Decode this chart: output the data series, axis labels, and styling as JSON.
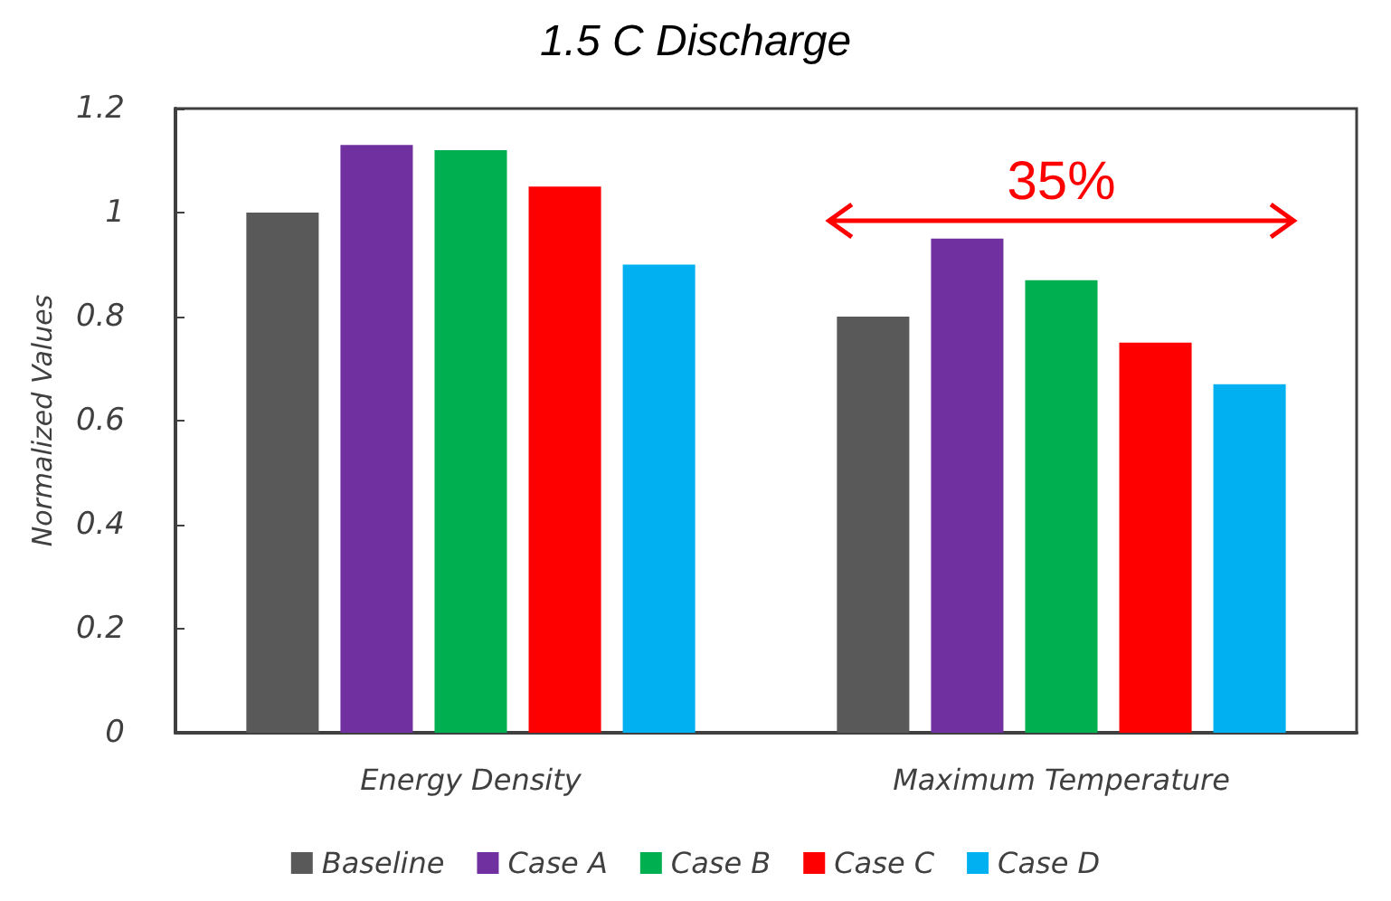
{
  "chart_data": {
    "type": "bar",
    "title": "1.5 C Discharge",
    "ylabel": "Normalized Values",
    "categories": [
      "Energy Density",
      "Maximum Temperature"
    ],
    "series": [
      {
        "name": "Baseline",
        "color": "#595959",
        "values": [
          1.0,
          0.8
        ]
      },
      {
        "name": "Case A",
        "color": "#7030a0",
        "values": [
          1.13,
          0.95
        ]
      },
      {
        "name": "Case B",
        "color": "#00b050",
        "values": [
          1.12,
          0.87
        ]
      },
      {
        "name": "Case C",
        "color": "#ff0000",
        "values": [
          1.05,
          0.75
        ]
      },
      {
        "name": "Case D",
        "color": "#00b0f0",
        "values": [
          0.9,
          0.67
        ]
      }
    ],
    "ylim": [
      0,
      1.2
    ],
    "yticks": [
      0,
      0.2,
      0.4,
      0.6,
      0.8,
      1,
      1.2
    ],
    "annotations": [
      "35%"
    ],
    "grid": false,
    "legend": "bottom"
  }
}
